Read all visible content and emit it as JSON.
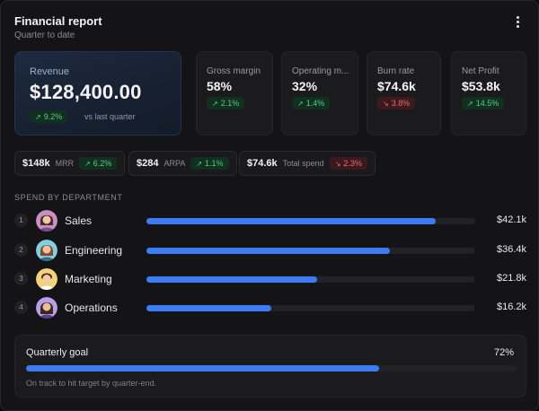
{
  "header": {
    "title": "Financial report",
    "subtitle": "Quarter to date",
    "menu_icon": "more-vertical-icon"
  },
  "revenue": {
    "label": "Revenue",
    "value": "$128,400.00",
    "change": "9.2%",
    "direction": "up",
    "comparison": "vs last quarter"
  },
  "metrics": [
    {
      "label": "Gross margin",
      "value": "58%",
      "change": "2.1%",
      "direction": "up"
    },
    {
      "label": "Operating m...",
      "value": "32%",
      "change": "1.4%",
      "direction": "up"
    },
    {
      "label": "Burn rate",
      "value": "$74.6k",
      "change": "3.8%",
      "direction": "down"
    },
    {
      "label": "Net Profit",
      "value": "$53.8k",
      "change": "14.5%",
      "direction": "up"
    }
  ],
  "mini_stats": [
    {
      "value": "$148k",
      "label": "MRR",
      "change": "6.2%",
      "direction": "up"
    },
    {
      "value": "$284",
      "label": "ARPA",
      "change": "1.1%",
      "direction": "up"
    },
    {
      "value": "$74.6k",
      "label": "Total spend",
      "change": "2.3%",
      "direction": "down"
    }
  ],
  "departments": {
    "heading": "SPEND BY DEPARTMENT",
    "items": [
      {
        "rank": "1",
        "name": "Sales",
        "amount": "$42.1k",
        "share": 0.88
      },
      {
        "rank": "2",
        "name": "Engineering",
        "amount": "$36.4k",
        "share": 0.74
      },
      {
        "rank": "3",
        "name": "Marketing",
        "amount": "$21.8k",
        "share": 0.52
      },
      {
        "rank": "4",
        "name": "Operations",
        "amount": "$16.2k",
        "share": 0.38
      }
    ]
  },
  "goal": {
    "label": "Quarterly goal",
    "percent": "72%",
    "progress": 0.72,
    "note": "On track to hit target by quarter-end."
  },
  "colors": {
    "accent": "#3b7cf5",
    "positive": "#4fd184",
    "negative": "#ef6b6b"
  }
}
